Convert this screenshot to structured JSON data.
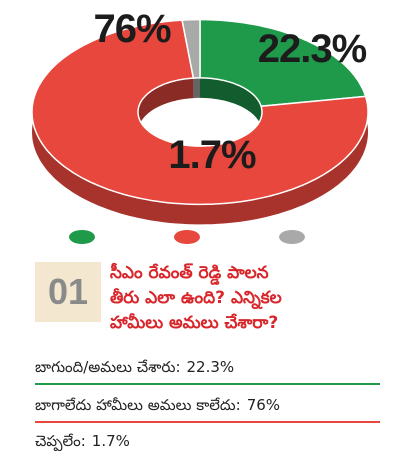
{
  "chart_data": {
    "type": "pie",
    "donut": true,
    "categories": [
      "బాగుంది/అమలు చేశారు:",
      "బాగాలేదు హామీలు అమలు కాలేదు:",
      "చెప్పలేం:"
    ],
    "values": [
      22.3,
      76,
      1.7
    ],
    "value_labels": [
      "22.3%",
      "76%",
      "1.7%"
    ],
    "colors": [
      "#1f9a4b",
      "#e8473d",
      "#a9a9a9"
    ]
  },
  "question": {
    "number": "01",
    "lines": [
      "సీఎం రేవంత్ రెడ్డి పాలన",
      "తీరు ఎలా ఉంది? ఎన్నికల",
      "హామీలు అమలు చేశారా?"
    ]
  }
}
